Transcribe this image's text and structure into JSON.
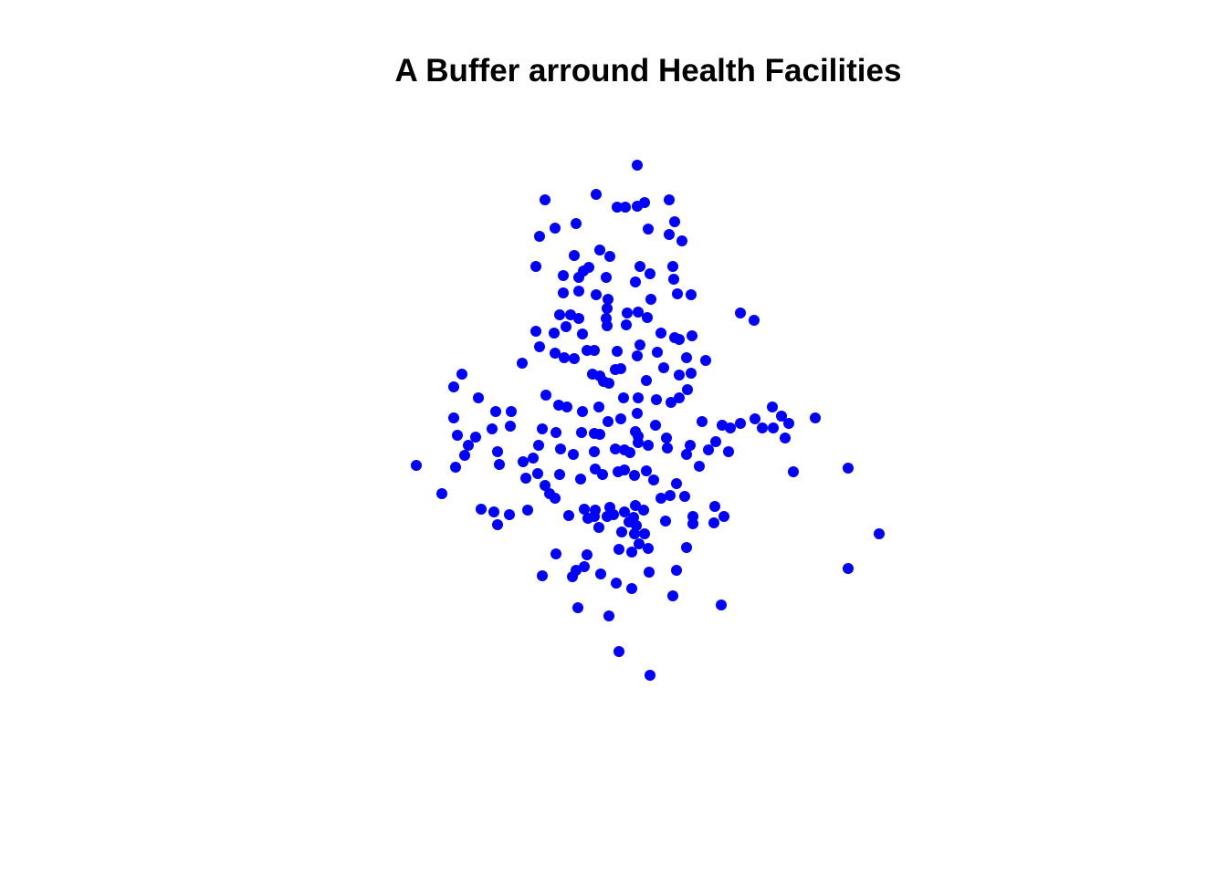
{
  "chart_data": {
    "type": "scatter",
    "title": "A Buffer arround Health Facilities",
    "xlabel": "",
    "ylabel": "",
    "axes_visible": false,
    "grid": false,
    "marker_color": "#0000ff",
    "series": [
      {
        "points": [
          [
            698,
            181
          ],
          [
            597,
            219
          ],
          [
            653,
            213
          ],
          [
            676,
            227
          ],
          [
            685,
            227
          ],
          [
            698,
            226
          ],
          [
            706,
            222
          ],
          [
            733,
            219
          ],
          [
            591,
            259
          ],
          [
            608,
            250
          ],
          [
            631,
            245
          ],
          [
            710,
            251
          ],
          [
            739,
            243
          ],
          [
            733,
            257
          ],
          [
            747,
            264
          ],
          [
            587,
            292
          ],
          [
            629,
            280
          ],
          [
            657,
            274
          ],
          [
            668,
            281
          ],
          [
            617,
            302
          ],
          [
            634,
            304
          ],
          [
            639,
            297
          ],
          [
            645,
            293
          ],
          [
            664,
            304
          ],
          [
            701,
            292
          ],
          [
            712,
            300
          ],
          [
            737,
            292
          ],
          [
            696,
            309
          ],
          [
            738,
            306
          ],
          [
            617,
            321
          ],
          [
            634,
            319
          ],
          [
            653,
            323
          ],
          [
            666,
            328
          ],
          [
            713,
            328
          ],
          [
            742,
            322
          ],
          [
            757,
            323
          ],
          [
            811,
            343
          ],
          [
            826,
            351
          ],
          [
            613,
            345
          ],
          [
            625,
            345
          ],
          [
            634,
            349
          ],
          [
            665,
            338
          ],
          [
            664,
            349
          ],
          [
            687,
            343
          ],
          [
            699,
            342
          ],
          [
            709,
            348
          ],
          [
            686,
            356
          ],
          [
            587,
            363
          ],
          [
            607,
            365
          ],
          [
            620,
            358
          ],
          [
            638,
            366
          ],
          [
            665,
            357
          ],
          [
            724,
            365
          ],
          [
            739,
            370
          ],
          [
            744,
            372
          ],
          [
            758,
            368
          ],
          [
            591,
            380
          ],
          [
            608,
            387
          ],
          [
            618,
            392
          ],
          [
            629,
            393
          ],
          [
            643,
            384
          ],
          [
            651,
            384
          ],
          [
            676,
            385
          ],
          [
            701,
            378
          ],
          [
            720,
            386
          ],
          [
            752,
            392
          ],
          [
            773,
            395
          ],
          [
            572,
            398
          ],
          [
            506,
            410
          ],
          [
            497,
            424
          ],
          [
            649,
            410
          ],
          [
            657,
            412
          ],
          [
            661,
            418
          ],
          [
            674,
            405
          ],
          [
            680,
            404
          ],
          [
            698,
            390
          ],
          [
            708,
            417
          ],
          [
            727,
            403
          ],
          [
            744,
            411
          ],
          [
            757,
            409
          ],
          [
            753,
            427
          ],
          [
            744,
            436
          ],
          [
            735,
            441
          ],
          [
            524,
            436
          ],
          [
            543,
            451
          ],
          [
            560,
            451
          ],
          [
            598,
            433
          ],
          [
            612,
            444
          ],
          [
            621,
            446
          ],
          [
            638,
            451
          ],
          [
            656,
            446
          ],
          [
            667,
            420
          ],
          [
            683,
            436
          ],
          [
            699,
            436
          ],
          [
            719,
            438
          ],
          [
            497,
            458
          ],
          [
            501,
            477
          ],
          [
            521,
            479
          ],
          [
            539,
            470
          ],
          [
            559,
            467
          ],
          [
            594,
            470
          ],
          [
            609,
            474
          ],
          [
            637,
            474
          ],
          [
            651,
            475
          ],
          [
            657,
            476
          ],
          [
            666,
            462
          ],
          [
            680,
            459
          ],
          [
            698,
            453
          ],
          [
            696,
            473
          ],
          [
            699,
            478
          ],
          [
            718,
            466
          ],
          [
            769,
            462
          ],
          [
            791,
            466
          ],
          [
            800,
            469
          ],
          [
            811,
            464
          ],
          [
            827,
            459
          ],
          [
            846,
            446
          ],
          [
            856,
            456
          ],
          [
            864,
            464
          ],
          [
            893,
            458
          ],
          [
            835,
            469
          ],
          [
            847,
            469
          ],
          [
            860,
            480
          ],
          [
            456,
            510
          ],
          [
            499,
            512
          ],
          [
            513,
            488
          ],
          [
            509,
            499
          ],
          [
            545,
            495
          ],
          [
            547,
            509
          ],
          [
            573,
            506
          ],
          [
            584,
            502
          ],
          [
            590,
            488
          ],
          [
            614,
            492
          ],
          [
            628,
            498
          ],
          [
            651,
            495
          ],
          [
            674,
            492
          ],
          [
            684,
            493
          ],
          [
            690,
            496
          ],
          [
            710,
            488
          ],
          [
            699,
            485
          ],
          [
            730,
            480
          ],
          [
            731,
            491
          ],
          [
            752,
            498
          ],
          [
            756,
            488
          ],
          [
            766,
            511
          ],
          [
            776,
            493
          ],
          [
            784,
            484
          ],
          [
            798,
            495
          ],
          [
            869,
            517
          ],
          [
            929,
            513
          ],
          [
            484,
            541
          ],
          [
            576,
            524
          ],
          [
            589,
            519
          ],
          [
            597,
            532
          ],
          [
            602,
            541
          ],
          [
            608,
            546
          ],
          [
            613,
            520
          ],
          [
            636,
            525
          ],
          [
            652,
            514
          ],
          [
            660,
            520
          ],
          [
            677,
            517
          ],
          [
            684,
            515
          ],
          [
            695,
            521
          ],
          [
            708,
            516
          ],
          [
            716,
            526
          ],
          [
            741,
            530
          ],
          [
            750,
            544
          ],
          [
            734,
            543
          ],
          [
            724,
            546
          ],
          [
            527,
            558
          ],
          [
            541,
            561
          ],
          [
            545,
            575
          ],
          [
            558,
            564
          ],
          [
            578,
            559
          ],
          [
            623,
            565
          ],
          [
            640,
            558
          ],
          [
            644,
            568
          ],
          [
            651,
            566
          ],
          [
            656,
            578
          ],
          [
            668,
            556
          ],
          [
            665,
            566
          ],
          [
            652,
            559
          ],
          [
            672,
            564
          ],
          [
            684,
            561
          ],
          [
            696,
            554
          ],
          [
            689,
            572
          ],
          [
            694,
            567
          ],
          [
            705,
            559
          ],
          [
            729,
            571
          ],
          [
            759,
            566
          ],
          [
            759,
            574
          ],
          [
            783,
            555
          ],
          [
            782,
            573
          ],
          [
            793,
            566
          ],
          [
            681,
            583
          ],
          [
            695,
            585
          ],
          [
            697,
            576
          ],
          [
            700,
            596
          ],
          [
            706,
            585
          ],
          [
            710,
            601
          ],
          [
            752,
            600
          ],
          [
            678,
            602
          ],
          [
            692,
            605
          ],
          [
            609,
            607
          ],
          [
            643,
            608
          ],
          [
            640,
            621
          ],
          [
            631,
            625
          ],
          [
            627,
            632
          ],
          [
            594,
            631
          ],
          [
            658,
            629
          ],
          [
            675,
            639
          ],
          [
            692,
            645
          ],
          [
            711,
            627
          ],
          [
            741,
            625
          ],
          [
            633,
            666
          ],
          [
            667,
            675
          ],
          [
            737,
            653
          ],
          [
            790,
            663
          ],
          [
            929,
            623
          ],
          [
            963,
            585
          ],
          [
            678,
            714
          ],
          [
            712,
            740
          ]
        ]
      }
    ]
  }
}
